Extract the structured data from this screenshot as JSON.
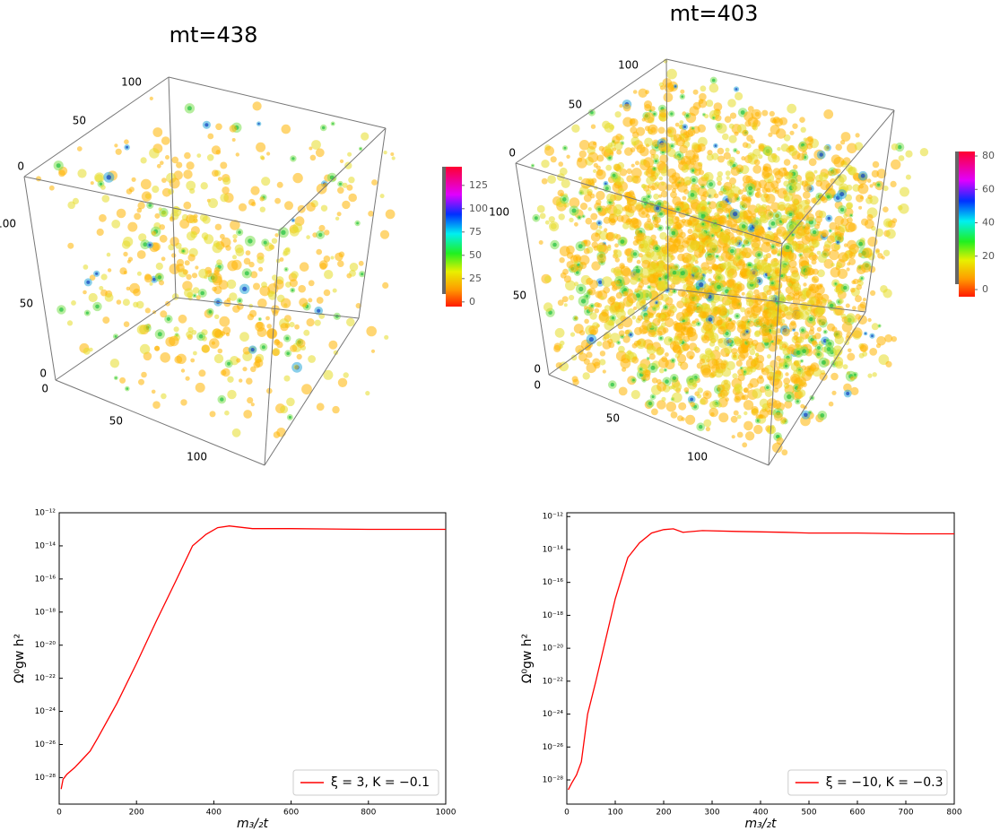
{
  "chart_data": [
    {
      "type": "volume",
      "title": "mt=438",
      "axis_ticks": {
        "depth": [
          0,
          50,
          100
        ],
        "vertical": [
          0,
          50,
          100
        ],
        "width": [
          0,
          50,
          100
        ]
      },
      "clim": [
        -5,
        145
      ],
      "cticks": [
        0,
        25,
        50,
        75,
        100,
        125
      ]
    },
    {
      "type": "volume",
      "title": "mt=403",
      "axis_ticks": {
        "depth": [
          0,
          50,
          100
        ],
        "vertical": [
          0,
          50,
          100
        ],
        "width": [
          0,
          50,
          100
        ]
      },
      "clim": [
        -4.3,
        82.7
      ],
      "cticks": [
        0,
        20,
        40,
        60,
        80
      ]
    },
    {
      "type": "line",
      "xlabel": "m₃/₂t",
      "ylabel": "Ω⁰gw h²",
      "log_y": true,
      "legend": "lower right",
      "x": [
        5,
        10,
        20,
        40,
        56,
        80,
        100,
        150,
        200,
        250,
        300,
        345,
        380,
        410,
        440,
        500,
        600,
        800,
        1000
      ],
      "series": [
        {
          "name": "ξ = 3, K = −0.1",
          "color": "#ff0000",
          "values": [
            2e-29,
            7.9e-29,
            1.6e-28,
            4e-28,
            1e-27,
            4e-27,
            2.5e-26,
            3.2e-24,
            7.9e-22,
            2.5e-19,
            6.3e-17,
            1e-14,
            5e-14,
            1.26e-13,
            1.6e-13,
            1.1e-13,
            1.1e-13,
            1e-13,
            1e-13
          ]
        }
      ],
      "xlim": [
        0,
        1000
      ],
      "xticks": [
        0,
        200,
        400,
        600,
        800,
        1000
      ],
      "ylim": [
        2.5e-30,
        1e-12
      ],
      "yticks": [
        {
          "value": 1e-28,
          "label": "10⁻²⁸"
        },
        {
          "value": 1e-26,
          "label": "10⁻²⁶"
        },
        {
          "value": 1e-24,
          "label": "10⁻²⁴"
        },
        {
          "value": 1e-22,
          "label": "10⁻²²"
        },
        {
          "value": 1e-20,
          "label": "10⁻²⁰"
        },
        {
          "value": 1e-18,
          "label": "10⁻¹⁸"
        },
        {
          "value": 1e-16,
          "label": "10⁻¹⁶"
        },
        {
          "value": 1e-14,
          "label": "10⁻¹⁴"
        },
        {
          "value": 1e-12,
          "label": "10⁻¹²"
        }
      ]
    },
    {
      "type": "line",
      "xlabel": "m₃/₂t",
      "ylabel": "Ω⁰gw h²",
      "log_y": true,
      "legend": "lower right",
      "x": [
        3,
        10,
        20,
        30,
        43,
        60,
        76,
        100,
        126,
        150,
        175,
        200,
        220,
        240,
        280,
        350,
        450,
        500,
        600,
        700,
        800
      ],
      "series": [
        {
          "name": "ξ = −10, K = −0.3",
          "color": "#ff0000",
          "values": [
            2.5e-29,
            6.3e-29,
            2e-28,
            1.26e-27,
            1e-24,
            1e-22,
            1e-20,
            1e-17,
            3.2e-15,
            2.5e-14,
            1e-13,
            1.6e-13,
            1.8e-13,
            1.1e-13,
            1.4e-13,
            1.26e-13,
            1.1e-13,
            1e-13,
            1e-13,
            8.9e-14,
            8.9e-14
          ]
        }
      ],
      "xlim": [
        0,
        800
      ],
      "xticks": [
        0,
        100,
        200,
        300,
        400,
        500,
        600,
        700,
        800
      ],
      "ylim": [
        3.4e-30,
        1.7e-12
      ],
      "yticks": [
        {
          "value": 1e-28,
          "label": "10⁻²⁸"
        },
        {
          "value": 1e-26,
          "label": "10⁻²⁶"
        },
        {
          "value": 1e-24,
          "label": "10⁻²⁴"
        },
        {
          "value": 1e-22,
          "label": "10⁻²²"
        },
        {
          "value": 1e-20,
          "label": "10⁻²⁰"
        },
        {
          "value": 1e-18,
          "label": "10⁻¹⁸"
        },
        {
          "value": 1e-16,
          "label": "10⁻¹⁶"
        },
        {
          "value": 1e-14,
          "label": "10⁻¹⁴"
        },
        {
          "value": 1e-12,
          "label": "10⁻¹²"
        }
      ]
    }
  ]
}
